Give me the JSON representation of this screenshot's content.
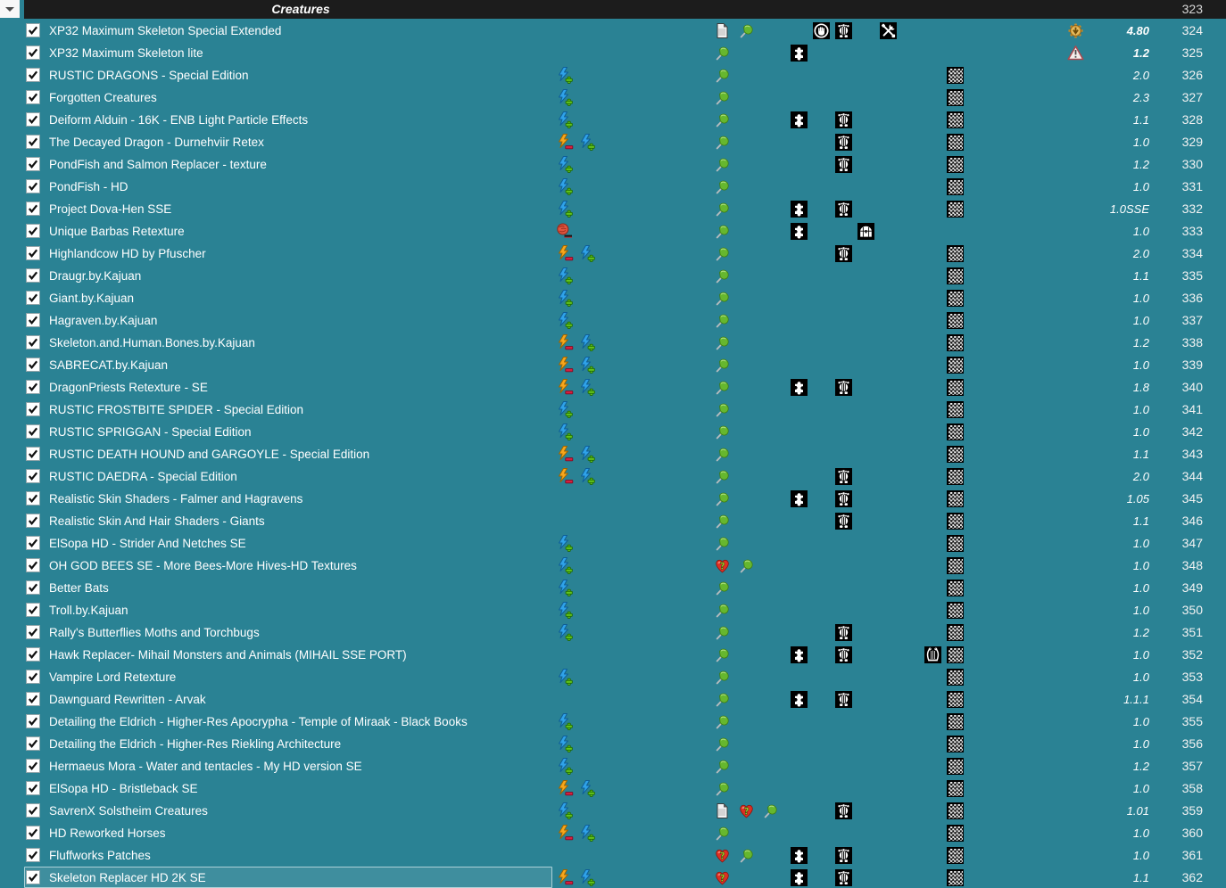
{
  "separator": {
    "title": "Creatures",
    "priority": "323"
  },
  "colors": {
    "background": "#2a8294",
    "separator_bg": "#1c1c1c",
    "row_text": "#ffffff",
    "win_conflict_blue": "#2fa2e8",
    "lose_conflict_orange": "#f7a61b",
    "plus_green": "#63c41c",
    "minus_red": "#d61f3e",
    "pin_green": "#66b72e",
    "heart_red": "#dd2f23",
    "update_gold": "#c89538",
    "warning_red": "#aa4a50"
  },
  "icon_legend": {
    "win": "lightning-plus-icon",
    "lose": "lightning-minus-icon",
    "redundant": "crumpled-redundant-icon",
    "pin": "tracked-pin-icon",
    "notes": "notes-icon",
    "heart": "endorsement-unknown-icon",
    "plugin": "puzzle-plugin-icon",
    "interface": "hand-circle-icon",
    "meshes": "skeleton-mesh-icon",
    "archive": "chest-archive-icon",
    "ini": "crossed-tools-icon",
    "sound": "harp-sound-icon",
    "textures": "checkerboard-textures-icon",
    "update": "update-available-icon",
    "warning": "warning-triangle-icon"
  },
  "rows": [
    {
      "name": "XP32 Maximum Skeleton Special Extended",
      "checked": true,
      "conflicts": [],
      "flags": [
        "notes",
        "pin"
      ],
      "content": [
        "interface",
        "meshes",
        "ini"
      ],
      "version": "4.80",
      "version_bold": true,
      "version_icon": "update",
      "priority": "324",
      "selected": false
    },
    {
      "name": "XP32 Maximum Skeleton lite",
      "checked": true,
      "conflicts": [],
      "flags": [
        "pin"
      ],
      "content": [
        "plugin"
      ],
      "version": "1.2",
      "version_bold": true,
      "version_icon": "warning",
      "priority": "325",
      "selected": false
    },
    {
      "name": "RUSTIC DRAGONS - Special Edition",
      "checked": true,
      "conflicts": [
        "win"
      ],
      "flags": [
        "pin"
      ],
      "content": [
        "textures"
      ],
      "version": "2.0",
      "version_bold": false,
      "version_icon": null,
      "priority": "326",
      "selected": false
    },
    {
      "name": "Forgotten Creatures",
      "checked": true,
      "conflicts": [
        "win"
      ],
      "flags": [
        "pin"
      ],
      "content": [
        "textures"
      ],
      "version": "2.3",
      "version_bold": false,
      "version_icon": null,
      "priority": "327",
      "selected": false
    },
    {
      "name": "Deiform Alduin - 16K - ENB Light Particle Effects",
      "checked": true,
      "conflicts": [
        "win"
      ],
      "flags": [
        "pin"
      ],
      "content": [
        "plugin",
        "meshes",
        "textures"
      ],
      "version": "1.1",
      "version_bold": false,
      "version_icon": null,
      "priority": "328",
      "selected": false
    },
    {
      "name": "The Decayed Dragon - Durnehviir Retex",
      "checked": true,
      "conflicts": [
        "lose",
        "win"
      ],
      "flags": [
        "pin"
      ],
      "content": [
        "meshes",
        "textures"
      ],
      "version": "1.0",
      "version_bold": false,
      "version_icon": null,
      "priority": "329",
      "selected": false
    },
    {
      "name": "PondFish and Salmon Replacer - texture",
      "checked": true,
      "conflicts": [
        "win"
      ],
      "flags": [
        "pin"
      ],
      "content": [
        "meshes",
        "textures"
      ],
      "version": "1.2",
      "version_bold": false,
      "version_icon": null,
      "priority": "330",
      "selected": false
    },
    {
      "name": "PondFish - HD",
      "checked": true,
      "conflicts": [
        "win"
      ],
      "flags": [
        "pin"
      ],
      "content": [
        "textures"
      ],
      "version": "1.0",
      "version_bold": false,
      "version_icon": null,
      "priority": "331",
      "selected": false
    },
    {
      "name": "Project Dova-Hen SSE",
      "checked": true,
      "conflicts": [
        "win"
      ],
      "flags": [
        "pin"
      ],
      "content": [
        "plugin",
        "meshes",
        "textures"
      ],
      "version": "1.0SSE",
      "version_bold": false,
      "version_icon": null,
      "priority": "332",
      "selected": false
    },
    {
      "name": "Unique Barbas Retexture",
      "checked": true,
      "conflicts": [
        "redundant"
      ],
      "flags": [
        "pin"
      ],
      "content": [
        "plugin",
        "archive"
      ],
      "version": "1.0",
      "version_bold": false,
      "version_icon": null,
      "priority": "333",
      "selected": false
    },
    {
      "name": "Highlandcow HD by Pfuscher",
      "checked": true,
      "conflicts": [
        "lose",
        "win"
      ],
      "flags": [
        "pin"
      ],
      "content": [
        "meshes",
        "textures"
      ],
      "version": "2.0",
      "version_bold": false,
      "version_icon": null,
      "priority": "334",
      "selected": false
    },
    {
      "name": "Draugr.by.Kajuan",
      "checked": true,
      "conflicts": [
        "win"
      ],
      "flags": [
        "pin"
      ],
      "content": [
        "textures"
      ],
      "version": "1.1",
      "version_bold": false,
      "version_icon": null,
      "priority": "335",
      "selected": false
    },
    {
      "name": "Giant.by.Kajuan",
      "checked": true,
      "conflicts": [
        "win"
      ],
      "flags": [
        "pin"
      ],
      "content": [
        "textures"
      ],
      "version": "1.0",
      "version_bold": false,
      "version_icon": null,
      "priority": "336",
      "selected": false
    },
    {
      "name": "Hagraven.by.Kajuan",
      "checked": true,
      "conflicts": [
        "win"
      ],
      "flags": [
        "pin"
      ],
      "content": [
        "textures"
      ],
      "version": "1.0",
      "version_bold": false,
      "version_icon": null,
      "priority": "337",
      "selected": false
    },
    {
      "name": "Skeleton.and.Human.Bones.by.Kajuan",
      "checked": true,
      "conflicts": [
        "lose",
        "win"
      ],
      "flags": [
        "pin"
      ],
      "content": [
        "textures"
      ],
      "version": "1.2",
      "version_bold": false,
      "version_icon": null,
      "priority": "338",
      "selected": false
    },
    {
      "name": "SABRECAT.by.Kajuan",
      "checked": true,
      "conflicts": [
        "lose",
        "win"
      ],
      "flags": [
        "pin"
      ],
      "content": [
        "textures"
      ],
      "version": "1.0",
      "version_bold": false,
      "version_icon": null,
      "priority": "339",
      "selected": false
    },
    {
      "name": "DragonPriests Retexture - SE",
      "checked": true,
      "conflicts": [
        "lose",
        "win"
      ],
      "flags": [
        "pin"
      ],
      "content": [
        "plugin",
        "meshes",
        "textures"
      ],
      "version": "1.8",
      "version_bold": false,
      "version_icon": null,
      "priority": "340",
      "selected": false
    },
    {
      "name": "RUSTIC FROSTBITE SPIDER - Special Edition",
      "checked": true,
      "conflicts": [
        "win"
      ],
      "flags": [
        "pin"
      ],
      "content": [
        "textures"
      ],
      "version": "1.0",
      "version_bold": false,
      "version_icon": null,
      "priority": "341",
      "selected": false
    },
    {
      "name": "RUSTIC SPRIGGAN - Special Edition",
      "checked": true,
      "conflicts": [
        "win"
      ],
      "flags": [
        "pin"
      ],
      "content": [
        "textures"
      ],
      "version": "1.0",
      "version_bold": false,
      "version_icon": null,
      "priority": "342",
      "selected": false
    },
    {
      "name": "RUSTIC DEATH HOUND and GARGOYLE - Special Edition",
      "checked": true,
      "conflicts": [
        "lose",
        "win"
      ],
      "flags": [
        "pin"
      ],
      "content": [
        "textures"
      ],
      "version": "1.1",
      "version_bold": false,
      "version_icon": null,
      "priority": "343",
      "selected": false
    },
    {
      "name": "RUSTIC DAEDRA - Special Edition",
      "checked": true,
      "conflicts": [
        "lose",
        "win"
      ],
      "flags": [
        "pin"
      ],
      "content": [
        "meshes",
        "textures"
      ],
      "version": "2.0",
      "version_bold": false,
      "version_icon": null,
      "priority": "344",
      "selected": false
    },
    {
      "name": "Realistic Skin Shaders - Falmer and Hagravens",
      "checked": true,
      "conflicts": [],
      "flags": [
        "pin"
      ],
      "content": [
        "plugin",
        "meshes",
        "textures"
      ],
      "version": "1.05",
      "version_bold": false,
      "version_icon": null,
      "priority": "345",
      "selected": false
    },
    {
      "name": "Realistic Skin And Hair Shaders - Giants",
      "checked": true,
      "conflicts": [],
      "flags": [
        "pin"
      ],
      "content": [
        "meshes",
        "textures"
      ],
      "version": "1.1",
      "version_bold": false,
      "version_icon": null,
      "priority": "346",
      "selected": false
    },
    {
      "name": "ElSopa HD - Strider And Netches SE",
      "checked": true,
      "conflicts": [
        "win"
      ],
      "flags": [
        "pin"
      ],
      "content": [
        "textures"
      ],
      "version": "1.0",
      "version_bold": false,
      "version_icon": null,
      "priority": "347",
      "selected": false
    },
    {
      "name": "OH GOD BEES SE - More Bees-More Hives-HD Textures",
      "checked": true,
      "conflicts": [
        "win"
      ],
      "flags": [
        "heart",
        "pin"
      ],
      "content": [
        "textures"
      ],
      "version": "1.0",
      "version_bold": false,
      "version_icon": null,
      "priority": "348",
      "selected": false
    },
    {
      "name": "Better Bats",
      "checked": true,
      "conflicts": [
        "win"
      ],
      "flags": [
        "pin"
      ],
      "content": [
        "textures"
      ],
      "version": "1.0",
      "version_bold": false,
      "version_icon": null,
      "priority": "349",
      "selected": false
    },
    {
      "name": "Troll.by.Kajuan",
      "checked": true,
      "conflicts": [
        "win"
      ],
      "flags": [
        "pin"
      ],
      "content": [
        "textures"
      ],
      "version": "1.0",
      "version_bold": false,
      "version_icon": null,
      "priority": "350",
      "selected": false
    },
    {
      "name": "Rally's Butterflies Moths and Torchbugs",
      "checked": true,
      "conflicts": [
        "win"
      ],
      "flags": [
        "pin"
      ],
      "content": [
        "meshes",
        "textures"
      ],
      "version": "1.2",
      "version_bold": false,
      "version_icon": null,
      "priority": "351",
      "selected": false
    },
    {
      "name": "Hawk Replacer- Mihail Monsters and Animals (MIHAIL SSE PORT)",
      "checked": true,
      "conflicts": [],
      "flags": [
        "pin"
      ],
      "content": [
        "plugin",
        "meshes",
        "sound",
        "textures"
      ],
      "version": "1.0",
      "version_bold": false,
      "version_icon": null,
      "priority": "352",
      "selected": false
    },
    {
      "name": "Vampire Lord Retexture",
      "checked": true,
      "conflicts": [
        "win"
      ],
      "flags": [
        "pin"
      ],
      "content": [
        "textures"
      ],
      "version": "1.0",
      "version_bold": false,
      "version_icon": null,
      "priority": "353",
      "selected": false
    },
    {
      "name": "Dawnguard Rewritten - Arvak",
      "checked": true,
      "conflicts": [],
      "flags": [
        "pin"
      ],
      "content": [
        "plugin",
        "meshes",
        "textures"
      ],
      "version": "1.1.1",
      "version_bold": false,
      "version_icon": null,
      "priority": "354",
      "selected": false
    },
    {
      "name": "Detailing the Eldrich - Higher-Res Apocrypha - Temple of Miraak - Black Books",
      "checked": true,
      "conflicts": [
        "win"
      ],
      "flags": [
        "pin"
      ],
      "content": [
        "textures"
      ],
      "version": "1.0",
      "version_bold": false,
      "version_icon": null,
      "priority": "355",
      "selected": false
    },
    {
      "name": "Detailing the Eldrich - Higher-Res Riekling Architecture",
      "checked": true,
      "conflicts": [
        "win"
      ],
      "flags": [
        "pin"
      ],
      "content": [
        "textures"
      ],
      "version": "1.0",
      "version_bold": false,
      "version_icon": null,
      "priority": "356",
      "selected": false
    },
    {
      "name": "Hermaeus Mora - Water and tentacles - My HD version SE",
      "checked": true,
      "conflicts": [
        "win"
      ],
      "flags": [
        "pin"
      ],
      "content": [
        "textures"
      ],
      "version": "1.2",
      "version_bold": false,
      "version_icon": null,
      "priority": "357",
      "selected": false
    },
    {
      "name": "ElSopa HD - Bristleback SE",
      "checked": true,
      "conflicts": [
        "lose",
        "win"
      ],
      "flags": [
        "pin"
      ],
      "content": [
        "textures"
      ],
      "version": "1.0",
      "version_bold": false,
      "version_icon": null,
      "priority": "358",
      "selected": false
    },
    {
      "name": "SavrenX Solstheim Creatures",
      "checked": true,
      "conflicts": [
        "win"
      ],
      "flags": [
        "notes",
        "heart",
        "pin"
      ],
      "content": [
        "meshes",
        "textures"
      ],
      "version": "1.01",
      "version_bold": false,
      "version_icon": null,
      "priority": "359",
      "selected": false
    },
    {
      "name": "HD Reworked Horses",
      "checked": true,
      "conflicts": [
        "lose",
        "win"
      ],
      "flags": [
        "pin"
      ],
      "content": [
        "textures"
      ],
      "version": "1.0",
      "version_bold": false,
      "version_icon": null,
      "priority": "360",
      "selected": false
    },
    {
      "name": "Fluffworks Patches",
      "checked": true,
      "conflicts": [],
      "flags": [
        "heart",
        "pin"
      ],
      "content": [
        "plugin",
        "meshes",
        "textures"
      ],
      "version": "1.0",
      "version_bold": false,
      "version_icon": null,
      "priority": "361",
      "selected": false
    },
    {
      "name": "Skeleton Replacer HD 2K SE",
      "checked": true,
      "conflicts": [
        "lose",
        "win"
      ],
      "flags": [
        "heart"
      ],
      "content": [
        "plugin",
        "meshes",
        "textures"
      ],
      "version": "1.1",
      "version_bold": false,
      "version_icon": null,
      "priority": "362",
      "selected": true
    }
  ]
}
